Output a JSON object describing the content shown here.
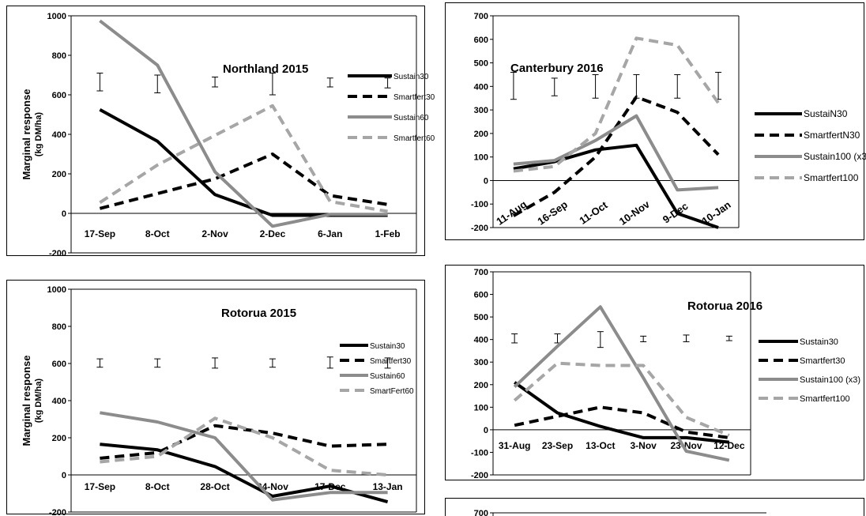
{
  "chart_data": [
    {
      "type": "line",
      "title": "Northland 2015",
      "ylabel": "Marginal response",
      "yunit": "(kg DM/ha)",
      "categories": [
        "17-Sep",
        "8-Oct",
        "2-Nov",
        "2-Dec",
        "6-Jan",
        "1-Feb"
      ],
      "ylim": [
        -200,
        1000
      ],
      "yticks": [
        -200,
        0,
        200,
        400,
        600,
        800,
        1000
      ],
      "series": [
        {
          "name": "Sustain30",
          "color": "#000000",
          "dash": false,
          "values": [
            525,
            365,
            95,
            -10,
            -10,
            -10
          ]
        },
        {
          "name": "Smartfert30",
          "color": "#000000",
          "dash": true,
          "values": [
            25,
            100,
            175,
            300,
            90,
            45
          ]
        },
        {
          "name": "Sustain60",
          "color": "#8c8c8c",
          "dash": false,
          "values": [
            975,
            750,
            210,
            -65,
            -5,
            -5
          ]
        },
        {
          "name": "Smartfert60",
          "color": "#a6a6a6",
          "dash": true,
          "values": [
            55,
            245,
            395,
            545,
            60,
            10
          ]
        }
      ],
      "error_bars": [
        [
          620,
          710
        ],
        [
          610,
          700
        ],
        [
          640,
          690
        ],
        [
          600,
          710
        ],
        [
          640,
          685
        ],
        [
          635,
          685
        ]
      ]
    },
    {
      "type": "line",
      "title": "Canterbury 2016",
      "ylabel": "",
      "yunit": "",
      "categories": [
        "11-Aug",
        "16-Sep",
        "11-Oct",
        "10-Nov",
        "9-Dec",
        "10-Jan"
      ],
      "ylim": [
        -200,
        700
      ],
      "yticks": [
        -200,
        -100,
        0,
        100,
        200,
        300,
        400,
        500,
        600,
        700
      ],
      "series": [
        {
          "name": "SustaiN30",
          "color": "#000000",
          "dash": false,
          "values": [
            50,
            80,
            130,
            150,
            -140,
            -200
          ]
        },
        {
          "name": "SmartfertN30",
          "color": "#000000",
          "dash": true,
          "values": [
            -150,
            -50,
            100,
            355,
            290,
            110
          ]
        },
        {
          "name": "Sustain100 (x3)",
          "color": "#8c8c8c",
          "dash": false,
          "values": [
            70,
            85,
            170,
            275,
            -40,
            -30
          ]
        },
        {
          "name": "Smartfert100",
          "color": "#a6a6a6",
          "dash": true,
          "values": [
            40,
            60,
            200,
            605,
            575,
            330
          ]
        }
      ],
      "error_bars": [
        [
          345,
          460
        ],
        [
          360,
          435
        ],
        [
          350,
          450
        ],
        [
          350,
          450
        ],
        [
          350,
          450
        ],
        [
          345,
          460
        ]
      ]
    },
    {
      "type": "line",
      "title": "Rotorua 2015",
      "ylabel": "Marginal response",
      "yunit": "(kg DM/ha)",
      "categories": [
        "17-Sep",
        "8-Oct",
        "28-Oct",
        "24-Nov",
        "17-Dec",
        "13-Jan"
      ],
      "ylim": [
        -200,
        1000
      ],
      "yticks": [
        -200,
        0,
        200,
        400,
        600,
        800,
        1000
      ],
      "series": [
        {
          "name": "Sustain30",
          "color": "#000000",
          "dash": false,
          "values": [
            165,
            135,
            45,
            -115,
            -60,
            -145
          ]
        },
        {
          "name": "Smartfert30",
          "color": "#000000",
          "dash": true,
          "values": [
            90,
            120,
            265,
            225,
            155,
            165
          ]
        },
        {
          "name": "Sustain60",
          "color": "#8c8c8c",
          "dash": false,
          "values": [
            335,
            285,
            200,
            -135,
            -95,
            -95
          ]
        },
        {
          "name": "SmartFert60",
          "color": "#a6a6a6",
          "dash": true,
          "values": [
            70,
            100,
            305,
            200,
            25,
            0
          ]
        }
      ],
      "error_bars": [
        [
          580,
          625
        ],
        [
          580,
          625
        ],
        [
          575,
          630
        ],
        [
          580,
          625
        ],
        [
          575,
          635
        ],
        [
          575,
          630
        ]
      ]
    },
    {
      "type": "line",
      "title": "Rotorua 2016",
      "ylabel": "",
      "yunit": "",
      "categories": [
        "31-Aug",
        "23-Sep",
        "13-Oct",
        "3-Nov",
        "23-Nov",
        "12-Dec"
      ],
      "ylim": [
        -200,
        700
      ],
      "yticks": [
        -200,
        -100,
        0,
        100,
        200,
        300,
        400,
        500,
        600,
        700
      ],
      "series": [
        {
          "name": "Sustain30",
          "color": "#000000",
          "dash": false,
          "values": [
            210,
            75,
            15,
            -35,
            -35,
            -55
          ]
        },
        {
          "name": "Smartfert30",
          "color": "#000000",
          "dash": true,
          "values": [
            20,
            60,
            100,
            75,
            -10,
            -35
          ]
        },
        {
          "name": "Sustain100 (x3)",
          "color": "#8c8c8c",
          "dash": false,
          "values": [
            190,
            370,
            545,
            230,
            -95,
            -135
          ]
        },
        {
          "name": "Smartfert100",
          "color": "#a6a6a6",
          "dash": true,
          "values": [
            130,
            295,
            285,
            285,
            55,
            -25
          ]
        }
      ],
      "error_bars": [
        [
          385,
          425
        ],
        [
          385,
          425
        ],
        [
          365,
          435
        ],
        [
          390,
          415
        ],
        [
          390,
          420
        ],
        [
          395,
          415
        ]
      ]
    },
    {
      "type": "line",
      "title": "",
      "ylabel": "",
      "yunit": "",
      "categories": [],
      "ylim": [
        -200,
        700
      ],
      "yticks": [
        700
      ],
      "series": [],
      "error_bars": []
    }
  ]
}
